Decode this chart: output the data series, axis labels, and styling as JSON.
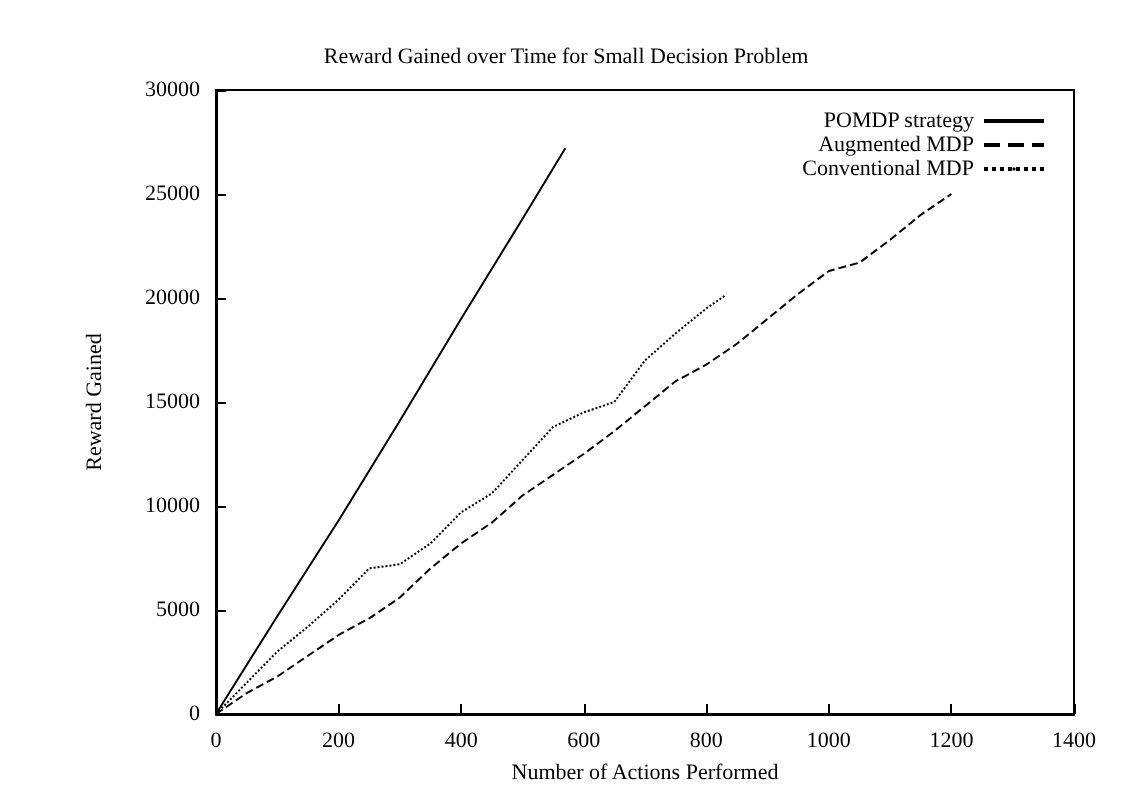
{
  "chart_data": {
    "type": "line",
    "title": "Reward Gained over Time for Small Decision Problem",
    "xlabel": "Number of Actions Performed",
    "ylabel": "Reward Gained",
    "xlim": [
      0,
      1400
    ],
    "xticks": [
      0,
      200,
      400,
      600,
      800,
      1000,
      1200,
      1400
    ],
    "ylim": [
      0,
      30000
    ],
    "yticks": [
      0,
      5000,
      10000,
      15000,
      20000,
      25000,
      30000
    ],
    "grid": false,
    "legend": "top right",
    "marker": "none",
    "series": [
      {
        "name": "POMDP strategy",
        "color": "#000000",
        "line_style": "solid",
        "x": [
          0,
          100,
          200,
          300,
          400,
          500,
          570
        ],
        "values": [
          0,
          4700,
          9300,
          14100,
          19000,
          23800,
          27200
        ]
      },
      {
        "name": "Augmented MDP",
        "color": "#000000",
        "line_style": "dashed",
        "x": [
          0,
          50,
          100,
          150,
          200,
          250,
          300,
          350,
          400,
          450,
          500,
          550,
          600,
          650,
          700,
          750,
          800,
          850,
          900,
          950,
          1000,
          1050,
          1100,
          1150,
          1200
        ],
        "values": [
          0,
          1000,
          1800,
          2800,
          3800,
          4600,
          5600,
          7000,
          8200,
          9200,
          10500,
          11500,
          12500,
          13600,
          14800,
          16000,
          16800,
          17800,
          19000,
          20200,
          21300,
          21700,
          22800,
          24000,
          25000
        ]
      },
      {
        "name": "Conventional MDP",
        "color": "#000000",
        "line_style": "dotted",
        "x": [
          0,
          50,
          100,
          150,
          200,
          250,
          300,
          350,
          400,
          450,
          500,
          550,
          600,
          650,
          700,
          750,
          800,
          830
        ],
        "values": [
          0,
          1500,
          3000,
          4200,
          5500,
          7000,
          7200,
          8200,
          9700,
          10600,
          12200,
          13800,
          14500,
          15000,
          17000,
          18300,
          19500,
          20100
        ]
      }
    ]
  }
}
